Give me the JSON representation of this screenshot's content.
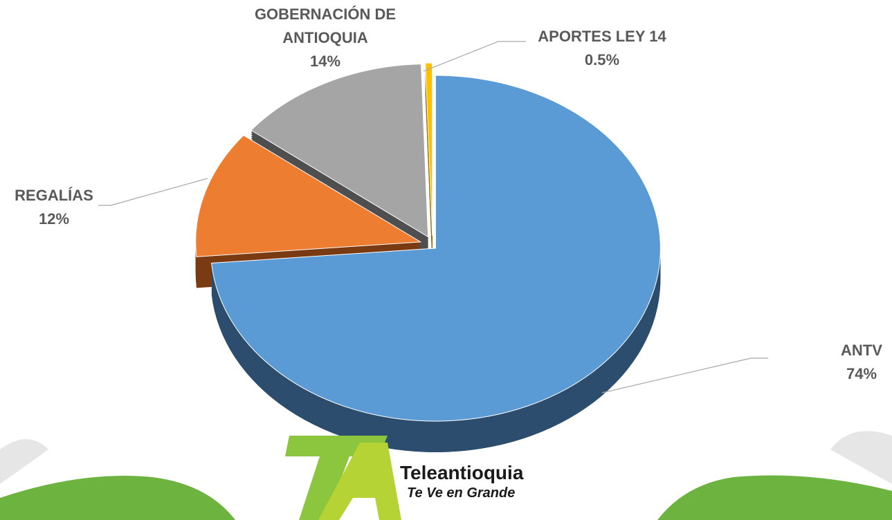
{
  "chart_data": {
    "type": "pie",
    "categories": [
      "ANTV",
      "REGALÍAS",
      "GOBERNACIÓN DE ANTIOQUIA",
      "APORTES LEY 14"
    ],
    "values": [
      74,
      12,
      14,
      0.5
    ],
    "value_labels": [
      "74%",
      "12%",
      "14%",
      "0.5%"
    ],
    "colors": [
      "#5b9bd5",
      "#ed7d31",
      "#a5a5a5",
      "#ffc000"
    ],
    "side_colors": [
      "#2c4d6d",
      "#7a3a12",
      "#4f4f4f",
      "#8f6b00"
    ]
  },
  "logo": {
    "name": "Teleantioquia",
    "tagline": "Te Ve en Grande"
  }
}
